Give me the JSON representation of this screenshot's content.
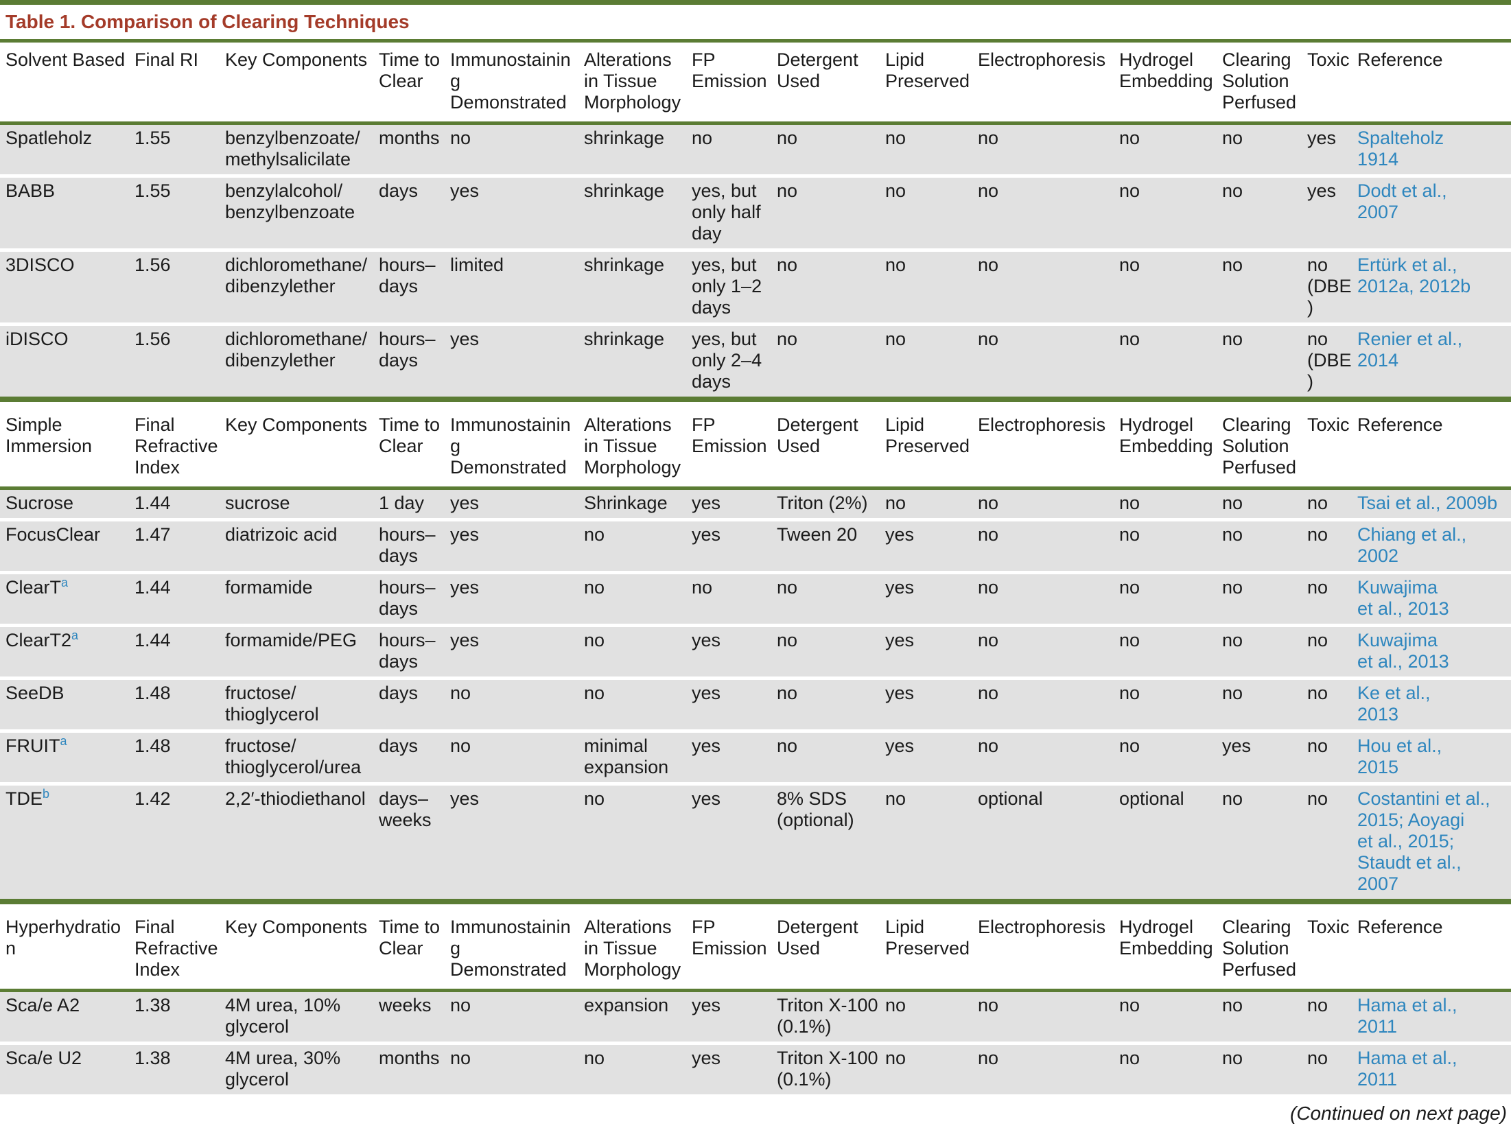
{
  "title": "Table 1.  Comparison of Clearing Techniques",
  "footer_note": "(Continued on next page)",
  "colors": {
    "rule_green": "#5b7c34",
    "title_red": "#a43b29",
    "link_blue": "#2e86be",
    "row_gray": "#e1e1e1"
  },
  "sections": [
    {
      "label": "Solvent Based",
      "headers": [
        "Solvent Based",
        "Final RI",
        "Key Components",
        "Time to\nClear",
        "Immunostaining\nDemonstrated",
        "Alterations\nin Tissue\nMorphology",
        "FP\nEmission",
        "Detergent\nUsed",
        "Lipid\nPreserved",
        "Electrophoresis",
        "Hydrogel\nEmbedding",
        "Clearing\nSolution\nPerfused",
        "Toxic",
        "Reference"
      ],
      "rows": [
        {
          "name": "Spatleholz",
          "sup": "",
          "values": [
            "1.55",
            "benzylbenzoate/\nmethylsalicilate",
            "months",
            "no",
            "shrinkage",
            "no",
            "no",
            "no",
            "no",
            "no",
            "no",
            "yes"
          ],
          "reference": "Spalteholz\n1914"
        },
        {
          "name": "BABB",
          "sup": "",
          "values": [
            "1.55",
            "benzylalcohol/\nbenzylbenzoate",
            "days",
            "yes",
            "shrinkage",
            "yes, but\nonly half\nday",
            "no",
            "no",
            "no",
            "no",
            "no",
            "yes"
          ],
          "reference": "Dodt et al.,\n2007"
        },
        {
          "name": "3DISCO",
          "sup": "",
          "values": [
            "1.56",
            "dichloromethane/\ndibenzylether",
            "hours–\ndays",
            "limited",
            "shrinkage",
            "yes, but\nonly 1–2\ndays",
            "no",
            "no",
            "no",
            "no",
            "no",
            "no\n(DBE)"
          ],
          "reference": "Ertürk et al.,\n2012a, 2012b"
        },
        {
          "name": "iDISCO",
          "sup": "",
          "values": [
            "1.56",
            "dichloromethane/\ndibenzylether",
            "hours–\ndays",
            "yes",
            "shrinkage",
            "yes, but\nonly 2–4\ndays",
            "no",
            "no",
            "no",
            "no",
            "no",
            "no\n(DBE)"
          ],
          "reference": "Renier et al.,\n2014"
        }
      ]
    },
    {
      "label": "Simple Immersion",
      "headers": [
        "Simple\nImmersion",
        "Final\nRefractive\nIndex",
        "Key Components",
        "Time to\nClear",
        "Immunostaining\nDemonstrated",
        "Alterations\nin Tissue\nMorphology",
        "FP\nEmission",
        "Detergent\nUsed",
        "Lipid\nPreserved",
        "Electrophoresis",
        "Hydrogel\nEmbedding",
        "Clearing\nSolution\nPerfused",
        "Toxic",
        "Reference"
      ],
      "rows": [
        {
          "name": "Sucrose",
          "sup": "",
          "values": [
            "1.44",
            "sucrose",
            "1 day",
            "yes",
            "Shrinkage",
            "yes",
            "Triton (2%)",
            "no",
            "no",
            "no",
            "no",
            "no"
          ],
          "reference": "Tsai et al., 2009b"
        },
        {
          "name": "FocusClear",
          "sup": "",
          "values": [
            "1.47",
            "diatrizoic acid",
            "hours–\ndays",
            "yes",
            "no",
            "yes",
            "Tween 20",
            "yes",
            "no",
            "no",
            "no",
            "no"
          ],
          "reference": "Chiang et al.,\n2002"
        },
        {
          "name": "ClearT",
          "sup": "a",
          "values": [
            "1.44",
            "formamide",
            "hours–\ndays",
            "yes",
            "no",
            "no",
            "no",
            "yes",
            "no",
            "no",
            "no",
            "no"
          ],
          "reference": "Kuwajima\net al., 2013"
        },
        {
          "name": "ClearT2",
          "sup": "a",
          "values": [
            "1.44",
            "formamide/PEG",
            "hours–\ndays",
            "yes",
            "no",
            "yes",
            "no",
            "yes",
            "no",
            "no",
            "no",
            "no"
          ],
          "reference": "Kuwajima\net al., 2013"
        },
        {
          "name": "SeeDB",
          "sup": "",
          "values": [
            "1.48",
            "fructose/\nthioglycerol",
            "days",
            "no",
            "no",
            "yes",
            "no",
            "yes",
            "no",
            "no",
            "no",
            "no"
          ],
          "reference": "Ke et al.,\n2013"
        },
        {
          "name": "FRUIT",
          "sup": "a",
          "values": [
            "1.48",
            "fructose/\nthioglycerol/urea",
            "days",
            "no",
            "minimal\nexpansion",
            "yes",
            "no",
            "yes",
            "no",
            "no",
            "yes",
            "no"
          ],
          "reference": "Hou et al.,\n2015"
        },
        {
          "name": "TDE",
          "sup": "b",
          "values": [
            "1.42",
            "2,2′-thiodiethanol",
            "days–\nweeks",
            "yes",
            "no",
            "yes",
            "8% SDS\n(optional)",
            "no",
            "optional",
            "optional",
            "no",
            "no"
          ],
          "reference": "Costantini et al.,\n2015; Aoyagi\net al., 2015;\nStaudt et al.,\n2007"
        }
      ]
    },
    {
      "label": "Hyperhydration",
      "headers": [
        "Hyperhydration",
        "Final\nRefractive\nIndex",
        "Key Components",
        "Time to\nClear",
        "Immunostaining\nDemonstrated",
        "Alterations\nin Tissue\nMorphology",
        "FP\nEmission",
        "Detergent\nUsed",
        "Lipid\nPreserved",
        "Electrophoresis",
        "Hydrogel\nEmbedding",
        "Clearing\nSolution\nPerfused",
        "Toxic",
        "Reference"
      ],
      "rows": [
        {
          "name": "Sca/e A2",
          "sup": "",
          "values": [
            "1.38",
            "4M urea, 10%\nglycerol",
            "weeks",
            "no",
            "expansion",
            "yes",
            "Triton X-100\n(0.1%)",
            "no",
            "no",
            "no",
            "no",
            "no"
          ],
          "reference": "Hama et al.,\n2011"
        },
        {
          "name": "Sca/e U2",
          "sup": "",
          "values": [
            "1.38",
            "4M urea, 30%\nglycerol",
            "months",
            "no",
            "no",
            "yes",
            "Triton X-100\n(0.1%)",
            "no",
            "no",
            "no",
            "no",
            "no"
          ],
          "reference": "Hama et al.,\n2011"
        }
      ]
    }
  ]
}
